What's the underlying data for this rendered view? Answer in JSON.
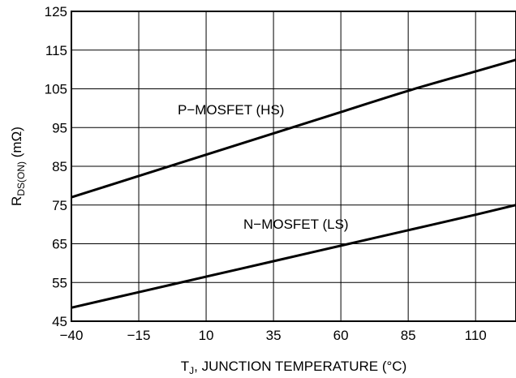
{
  "chart_data": {
    "type": "line",
    "xlabel": {
      "main": "T",
      "sub": "J",
      "rest": ", JUNCTION TEMPERATURE (°C)"
    },
    "ylabel": {
      "main": "R",
      "sub": "DS(ON)",
      "rest": " (mΩ)"
    },
    "xlim": [
      -40,
      125
    ],
    "ylim": [
      45,
      125
    ],
    "x_ticks": [
      -40,
      -15,
      10,
      35,
      60,
      85,
      110
    ],
    "x_tick_labels": [
      "−40",
      "−15",
      "10",
      "35",
      "60",
      "85",
      "110"
    ],
    "y_ticks": [
      45,
      55,
      65,
      75,
      85,
      95,
      105,
      115,
      125
    ],
    "y_tick_labels": [
      "45",
      "55",
      "65",
      "75",
      "85",
      "95",
      "105",
      "115",
      "125"
    ],
    "x_grid": [
      -40,
      -15,
      10,
      35,
      60,
      85,
      110,
      125
    ],
    "y_grid": [
      45,
      55,
      65,
      75,
      85,
      95,
      105,
      115,
      125
    ],
    "grid": true,
    "series": [
      {
        "name": "P−MOSFET (HS)",
        "x": [
          -40,
          -15,
          10,
          35,
          60,
          85,
          110,
          125
        ],
        "y": [
          77,
          82.5,
          88,
          93.5,
          99,
          104.5,
          109.5,
          112.5
        ]
      },
      {
        "name": "N−MOSFET (LS)",
        "x": [
          -40,
          -15,
          10,
          35,
          60,
          85,
          110,
          125
        ],
        "y": [
          48.5,
          52.5,
          56.5,
          60.5,
          64.5,
          68.5,
          72.5,
          75
        ]
      }
    ],
    "colors": {
      "line": "#000000",
      "grid": "#000000",
      "background": "#ffffff"
    }
  }
}
